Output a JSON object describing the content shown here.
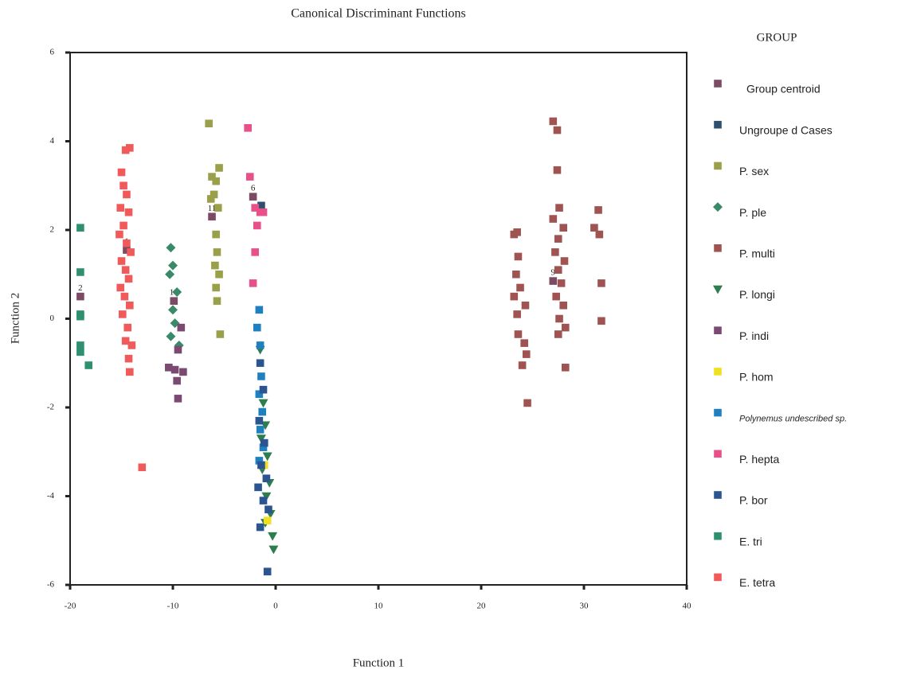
{
  "chart_data": {
    "type": "scatter",
    "title": "Canonical Discriminant Functions",
    "x_label": "Function 1",
    "y_label": "Function 2",
    "legend_title": "GROUP",
    "xlim": [
      -20,
      40
    ],
    "xticks": [
      -20,
      -10,
      0,
      10,
      20,
      30,
      40
    ],
    "ylim": [
      -6,
      6
    ],
    "yticks": [
      -6,
      -4,
      -2,
      0,
      2,
      4,
      6
    ],
    "series": [
      {
        "name": "Group centroid",
        "color": "#7b4a63",
        "marker": "square",
        "x": [
          -14.5,
          -19,
          27,
          -9.9,
          -6.2,
          -2.2
        ],
        "values": [
          1.55,
          0.5,
          0.85,
          0.4,
          2.3,
          2.75
        ],
        "point_labels": [
          "1",
          "2",
          "9",
          "10",
          "11",
          "6"
        ]
      },
      {
        "name": "Ungroupe d Cases",
        "color": "#2f4f6f",
        "marker": "square",
        "x": [
          -1.4
        ],
        "values": [
          2.55
        ]
      },
      {
        "name": "P. sex",
        "color": "#9aa04a",
        "marker": "square",
        "x": [
          -6.5,
          -6.2,
          -5.8,
          -6,
          -5.5,
          -6.3,
          -5.6,
          -5.8,
          -5.7,
          -5.9,
          -5.5,
          -5.8,
          -5.7,
          -5.4
        ],
        "values": [
          4.4,
          3.2,
          3.1,
          2.8,
          3.4,
          2.7,
          2.5,
          1.9,
          1.5,
          1.2,
          1.0,
          0.7,
          0.4,
          -0.35
        ]
      },
      {
        "name": "P. ple",
        "color": "#3a8a6a",
        "marker": "diamond",
        "x": [
          -10.2,
          -10,
          -10.3,
          -9.6,
          -10,
          -9.8,
          -10.2,
          -9.4
        ],
        "values": [
          1.6,
          1.2,
          1.0,
          0.6,
          0.2,
          -0.1,
          -0.4,
          -0.6
        ]
      },
      {
        "name": "P. multi",
        "color": "#a05452",
        "marker": "square",
        "x": [
          23.5,
          23.2,
          23.6,
          23.4,
          23.8,
          23.2,
          24.3,
          23.5,
          23.6,
          24.2,
          24.4,
          24,
          24.5,
          27,
          27.4,
          27.4,
          27.6,
          27,
          28,
          27.5,
          27.2,
          28.1,
          27.5,
          27.8,
          27.3,
          28,
          27.6,
          28.2,
          27.5,
          28.2,
          31,
          31.5,
          31.4,
          31.7,
          31.7
        ],
        "values": [
          1.95,
          1.9,
          1.4,
          1.0,
          0.7,
          0.5,
          0.3,
          0.1,
          -0.35,
          -0.55,
          -0.8,
          -1.05,
          -1.9,
          4.45,
          4.25,
          3.35,
          2.5,
          2.25,
          2.05,
          1.8,
          1.5,
          1.3,
          1.1,
          0.8,
          0.5,
          0.3,
          0.0,
          -0.2,
          -0.35,
          -1.1,
          2.05,
          1.9,
          2.45,
          0.8,
          -0.05
        ]
      },
      {
        "name": "P. longi",
        "color": "#2e7d4f",
        "marker": "triangle-down",
        "x": [
          -1.5,
          -1.2,
          -1,
          -1.4,
          -0.8,
          -1.3,
          -0.6,
          -0.9,
          -0.5,
          -1,
          -0.3,
          -0.2
        ],
        "values": [
          -0.7,
          -1.9,
          -2.4,
          -2.7,
          -3.1,
          -3.4,
          -3.7,
          -4.0,
          -4.4,
          -4.6,
          -4.9,
          -5.2
        ]
      },
      {
        "name": "P. indi",
        "color": "#7a4a72",
        "marker": "square",
        "x": [
          -9.2,
          -9.5,
          -10.4,
          -9.8,
          -9,
          -9.6,
          -9.5
        ],
        "values": [
          -0.2,
          -0.7,
          -1.1,
          -1.15,
          -1.2,
          -1.4,
          -1.8
        ]
      },
      {
        "name": "P. hom",
        "color": "#f0e020",
        "marker": "square",
        "x": [
          -0.8,
          -1.1
        ],
        "values": [
          -4.55,
          -3.3
        ]
      },
      {
        "name": "Polynemus undescribed sp.",
        "color": "#1f80c0",
        "marker": "square",
        "x": [
          -1.6,
          -1.8,
          -1.5,
          -1.4,
          -1.6,
          -1.3,
          -1.5,
          -1.2,
          -1.6
        ],
        "values": [
          0.2,
          -0.2,
          -0.6,
          -1.3,
          -1.7,
          -2.1,
          -2.5,
          -2.9,
          -3.2
        ]
      },
      {
        "name": "P. hepta",
        "color": "#e8508a",
        "marker": "square",
        "x": [
          -2.7,
          -2.5,
          -2,
          -1.5,
          -1.8,
          -1.2,
          -2,
          -2.2
        ],
        "values": [
          4.3,
          3.2,
          2.5,
          2.4,
          2.1,
          2.4,
          1.5,
          0.8
        ]
      },
      {
        "name": "P. bor",
        "color": "#2a5590",
        "marker": "square",
        "x": [
          -1.5,
          -1.2,
          -1.6,
          -1.1,
          -1.4,
          -0.9,
          -1.7,
          -1.2,
          -1.5,
          -0.7,
          -0.8
        ],
        "values": [
          -1,
          -1.6,
          -2.3,
          -2.8,
          -3.3,
          -3.6,
          -3.8,
          -4.1,
          -4.7,
          -4.3,
          -5.7
        ]
      },
      {
        "name": "E. tri",
        "color": "#2e9070",
        "marker": "square",
        "x": [
          -19,
          -19,
          -19,
          -19,
          -19,
          -19,
          -18.2
        ],
        "values": [
          2.05,
          1.05,
          0.1,
          0.05,
          -0.6,
          -0.75,
          -1.05
        ]
      },
      {
        "name": "E. tetra",
        "color": "#f05a5a",
        "marker": "square",
        "x": [
          -14.6,
          -14.2,
          -15,
          -14.8,
          -14.5,
          -15.1,
          -14.3,
          -14.8,
          -15.2,
          -14.5,
          -14.1,
          -15,
          -14.6,
          -14.3,
          -15.1,
          -14.7,
          -14.2,
          -14.9,
          -14.4,
          -14.6,
          -14,
          -14.3,
          -14.2,
          -13
        ],
        "values": [
          3.8,
          3.85,
          3.3,
          3.0,
          2.8,
          2.5,
          2.4,
          2.1,
          1.9,
          1.7,
          1.5,
          1.3,
          1.1,
          0.9,
          0.7,
          0.5,
          0.3,
          0.1,
          -0.2,
          -0.5,
          -0.6,
          -0.9,
          -1.2,
          -3.35
        ]
      }
    ]
  }
}
